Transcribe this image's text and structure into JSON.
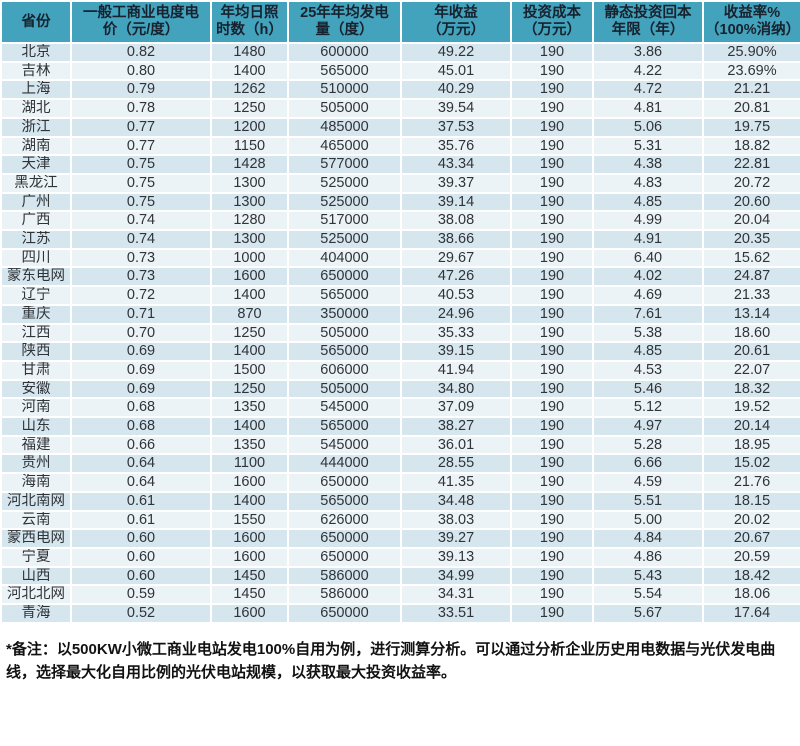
{
  "chart_data": {
    "type": "table",
    "title": "",
    "columns": [
      {
        "l1": "省份",
        "l2": "",
        "full": "省份"
      },
      {
        "l1": "一般工商业电度电",
        "l2": "价（元/度）",
        "full": "一般工商业电度电价（元/度）"
      },
      {
        "l1": "年均日照",
        "l2": "时数（h）",
        "full": "年均日照时数（h）"
      },
      {
        "l1": "25年年均发电",
        "l2": "量（度）",
        "full": "25年年均发电量（度）"
      },
      {
        "l1": "年收益",
        "l2": "（万元）",
        "full": "年收益（万元）"
      },
      {
        "l1": "投资成本",
        "l2": "（万元）",
        "full": "投资成本（万元）"
      },
      {
        "l1": "静态投资回本",
        "l2": "年限（年）",
        "full": "静态投资回本年限（年）"
      },
      {
        "l1": "收益率%",
        "l2": "（100%消纳）",
        "full": "收益率%（100%消纳）"
      }
    ],
    "rows": [
      [
        "北京",
        "0.82",
        "1480",
        "600000",
        "49.22",
        "190",
        "3.86",
        "25.90%"
      ],
      [
        "吉林",
        "0.80",
        "1400",
        "565000",
        "45.01",
        "190",
        "4.22",
        "23.69%"
      ],
      [
        "上海",
        "0.79",
        "1262",
        "510000",
        "40.29",
        "190",
        "4.72",
        "21.21"
      ],
      [
        "湖北",
        "0.78",
        "1250",
        "505000",
        "39.54",
        "190",
        "4.81",
        "20.81"
      ],
      [
        "浙江",
        "0.77",
        "1200",
        "485000",
        "37.53",
        "190",
        "5.06",
        "19.75"
      ],
      [
        "湖南",
        "0.77",
        "1150",
        "465000",
        "35.76",
        "190",
        "5.31",
        "18.82"
      ],
      [
        "天津",
        "0.75",
        "1428",
        "577000",
        "43.34",
        "190",
        "4.38",
        "22.81"
      ],
      [
        "黑龙江",
        "0.75",
        "1300",
        "525000",
        "39.37",
        "190",
        "4.83",
        "20.72"
      ],
      [
        "广州",
        "0.75",
        "1300",
        "525000",
        "39.14",
        "190",
        "4.85",
        "20.60"
      ],
      [
        "广西",
        "0.74",
        "1280",
        "517000",
        "38.08",
        "190",
        "4.99",
        "20.04"
      ],
      [
        "江苏",
        "0.74",
        "1300",
        "525000",
        "38.66",
        "190",
        "4.91",
        "20.35"
      ],
      [
        "四川",
        "0.73",
        "1000",
        "404000",
        "29.67",
        "190",
        "6.40",
        "15.62"
      ],
      [
        "蒙东电网",
        "0.73",
        "1600",
        "650000",
        "47.26",
        "190",
        "4.02",
        "24.87"
      ],
      [
        "辽宁",
        "0.72",
        "1400",
        "565000",
        "40.53",
        "190",
        "4.69",
        "21.33"
      ],
      [
        "重庆",
        "0.71",
        "870",
        "350000",
        "24.96",
        "190",
        "7.61",
        "13.14"
      ],
      [
        "江西",
        "0.70",
        "1250",
        "505000",
        "35.33",
        "190",
        "5.38",
        "18.60"
      ],
      [
        "陕西",
        "0.69",
        "1400",
        "565000",
        "39.15",
        "190",
        "4.85",
        "20.61"
      ],
      [
        "甘肃",
        "0.69",
        "1500",
        "606000",
        "41.94",
        "190",
        "4.53",
        "22.07"
      ],
      [
        "安徽",
        "0.69",
        "1250",
        "505000",
        "34.80",
        "190",
        "5.46",
        "18.32"
      ],
      [
        "河南",
        "0.68",
        "1350",
        "545000",
        "37.09",
        "190",
        "5.12",
        "19.52"
      ],
      [
        "山东",
        "0.68",
        "1400",
        "565000",
        "38.27",
        "190",
        "4.97",
        "20.14"
      ],
      [
        "福建",
        "0.66",
        "1350",
        "545000",
        "36.01",
        "190",
        "5.28",
        "18.95"
      ],
      [
        "贵州",
        "0.64",
        "1100",
        "444000",
        "28.55",
        "190",
        "6.66",
        "15.02"
      ],
      [
        "海南",
        "0.64",
        "1600",
        "650000",
        "41.35",
        "190",
        "4.59",
        "21.76"
      ],
      [
        "河北南网",
        "0.61",
        "1400",
        "565000",
        "34.48",
        "190",
        "5.51",
        "18.15"
      ],
      [
        "云南",
        "0.61",
        "1550",
        "626000",
        "38.03",
        "190",
        "5.00",
        "20.02"
      ],
      [
        "蒙西电网",
        "0.60",
        "1600",
        "650000",
        "39.27",
        "190",
        "4.84",
        "20.67"
      ],
      [
        "宁夏",
        "0.60",
        "1600",
        "650000",
        "39.13",
        "190",
        "4.86",
        "20.59"
      ],
      [
        "山西",
        "0.60",
        "1450",
        "586000",
        "34.99",
        "190",
        "5.43",
        "18.42"
      ],
      [
        "河北北网",
        "0.59",
        "1450",
        "586000",
        "34.31",
        "190",
        "5.54",
        "18.06"
      ],
      [
        "青海",
        "0.52",
        "1600",
        "650000",
        "33.51",
        "190",
        "5.67",
        "17.64"
      ]
    ],
    "layout": {
      "grid": "white 2px separators between all cells",
      "row_striping": "odd rows darker blue, even rows lighter blue",
      "header_position": "top"
    }
  },
  "footnote": {
    "prefix": "*备注：",
    "text": "以500KW小微工商业电站发电100%自用为例，进行测算分析。可以通过分析企业历史用电数据与光伏发电曲线，选择最大化自用比例的光伏电站规模，以获取最大投资收益率。"
  },
  "colors": {
    "header_bg": "#43a2bc",
    "header_text": "#17222e",
    "row_odd": "#d6e6ee",
    "row_even": "#ecf3f7",
    "cell_text": "#2f3438",
    "grid": "#ffffff"
  }
}
